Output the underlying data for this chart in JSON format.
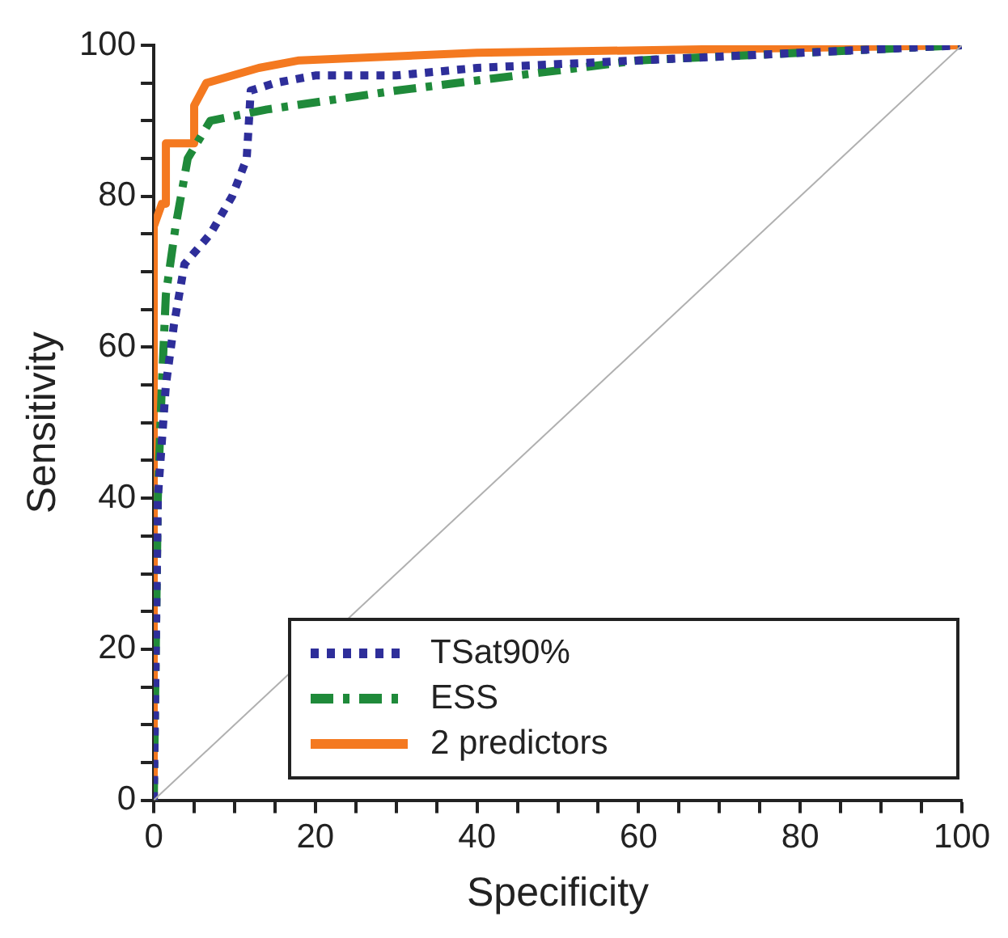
{
  "chart_data": {
    "type": "line",
    "xlabel": "Specificity",
    "ylabel": "Sensitivity",
    "xlim": [
      0,
      100
    ],
    "ylim": [
      0,
      100
    ],
    "xticks": [
      0,
      {
        "value": 5,
        "label": null
      },
      {
        "value": 10,
        "label": null
      },
      {
        "value": 15,
        "label": null
      },
      20,
      {
        "value": 25,
        "label": null
      },
      {
        "value": 30,
        "label": null
      },
      {
        "value": 35,
        "label": null
      },
      40,
      {
        "value": 45,
        "label": null
      },
      {
        "value": 50,
        "label": null
      },
      {
        "value": 55,
        "label": null
      },
      60,
      {
        "value": 65,
        "label": null
      },
      {
        "value": 70,
        "label": null
      },
      {
        "value": 75,
        "label": null
      },
      80,
      {
        "value": 85,
        "label": null
      },
      {
        "value": 90,
        "label": null
      },
      {
        "value": 95,
        "label": null
      },
      100
    ],
    "yticks": [
      0,
      {
        "value": 5,
        "label": null
      },
      {
        "value": 10,
        "label": null
      },
      {
        "value": 15,
        "label": null
      },
      20,
      {
        "value": 25,
        "label": null
      },
      {
        "value": 30,
        "label": null
      },
      {
        "value": 35,
        "label": null
      },
      40,
      {
        "value": 45,
        "label": null
      },
      {
        "value": 50,
        "label": null
      },
      {
        "value": 55,
        "label": null
      },
      60,
      {
        "value": 65,
        "label": null
      },
      {
        "value": 70,
        "label": null
      },
      {
        "value": 75,
        "label": null
      },
      80,
      {
        "value": 85,
        "label": null
      },
      {
        "value": 90,
        "label": null
      },
      {
        "value": 95,
        "label": null
      },
      100
    ],
    "grid": false,
    "legend": "bottom",
    "marker": "none",
    "series": [
      {
        "color": "#b0b0b0",
        "line_style": "solid",
        "x": [
          0,
          100
        ],
        "values": [
          0,
          100
        ]
      },
      {
        "name": "TSat90%",
        "color": "#2e2e9a",
        "line_style": "dotted",
        "x": [
          0,
          0.5,
          1.5,
          2.5,
          3.8,
          7,
          9.7,
          11.5,
          12,
          15,
          20,
          30,
          40,
          60,
          80,
          100
        ],
        "values": [
          0,
          40,
          55,
          63,
          71,
          75,
          80,
          85,
          94,
          95,
          96,
          96,
          97,
          98,
          99,
          100
        ]
      },
      {
        "name": "ESS",
        "color": "#1f8a3a",
        "line_style": "dashed",
        "x": [
          0,
          0.5,
          1,
          1.5,
          2.7,
          4.2,
          7,
          14,
          30,
          45,
          60,
          80,
          100
        ],
        "values": [
          0,
          40,
          55,
          67,
          76,
          85,
          90,
          91.5,
          94,
          96,
          98,
          99,
          100
        ]
      },
      {
        "name": "2 predictors",
        "color": "#f47920",
        "line_style": "solid",
        "x": [
          0,
          0,
          1,
          1.5,
          1.5,
          5,
          5,
          6.5,
          13,
          18,
          40,
          100
        ],
        "values": [
          0,
          76,
          79,
          79,
          87,
          87,
          92,
          95,
          97,
          98,
          99,
          100
        ]
      }
    ]
  }
}
